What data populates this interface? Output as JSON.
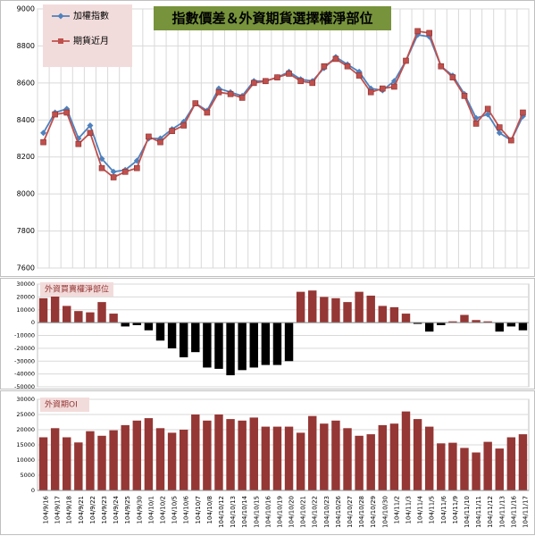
{
  "chart_data": [
    {
      "type": "line",
      "title": "指數價差＆外資期貨選擇權淨部位",
      "legend": "top-left",
      "grid": true,
      "ylim": [
        7600,
        9000
      ],
      "yticks": [
        7600,
        7800,
        8000,
        8200,
        8400,
        8600,
        8800,
        9000
      ],
      "series": [
        {
          "name": "加權指數",
          "color": "#4f81bd",
          "marker": "diamond",
          "values": [
            8330,
            8440,
            8460,
            8300,
            8370,
            8190,
            8120,
            8130,
            8180,
            8300,
            8300,
            8350,
            8390,
            8490,
            8450,
            8570,
            8550,
            8530,
            8610,
            8610,
            8630,
            8660,
            8620,
            8610,
            8680,
            8740,
            8700,
            8660,
            8570,
            8560,
            8610,
            8720,
            8860,
            8850,
            8690,
            8640,
            8540,
            8410,
            8430,
            8330,
            8290,
            8420
          ]
        },
        {
          "name": "期貨近月",
          "color": "#c0504d",
          "marker": "square",
          "values": [
            8280,
            8430,
            8440,
            8270,
            8330,
            8140,
            8090,
            8120,
            8140,
            8310,
            8280,
            8340,
            8370,
            8490,
            8440,
            8550,
            8540,
            8520,
            8600,
            8610,
            8630,
            8650,
            8610,
            8600,
            8690,
            8730,
            8690,
            8640,
            8550,
            8570,
            8580,
            8720,
            8880,
            8870,
            8690,
            8630,
            8530,
            8380,
            8460,
            8360,
            8290,
            8440
          ]
        }
      ]
    },
    {
      "type": "bar",
      "title": "外資買賣權淨部位",
      "grid": true,
      "color": "#953735",
      "negative_color": "#000000",
      "ylim": [
        -50000,
        30000
      ],
      "yticks": [
        -50000,
        -40000,
        -30000,
        -20000,
        -10000,
        0,
        10000,
        20000,
        30000
      ],
      "values": [
        19000,
        21000,
        13000,
        9000,
        8000,
        16000,
        7000,
        -3000,
        -2000,
        -6000,
        -14000,
        -20000,
        -27000,
        -23000,
        -35000,
        -36000,
        -41000,
        -37000,
        -35000,
        -33000,
        -33000,
        -30000,
        24000,
        25000,
        20000,
        19000,
        16000,
        24000,
        21000,
        13000,
        12000,
        7000,
        -1000,
        -7000,
        -2000,
        1000,
        6000,
        2000,
        1000,
        -7000,
        -3000,
        -6000
      ]
    },
    {
      "type": "bar",
      "title": "外資期OI",
      "grid": true,
      "color": "#953735",
      "ylim": [
        0,
        30000
      ],
      "yticks": [
        0,
        5000,
        10000,
        15000,
        20000,
        25000,
        30000
      ],
      "categories": [
        "104/9/16",
        "104/9/17",
        "104/9/18",
        "104/9/21",
        "104/9/22",
        "104/9/23",
        "104/9/24",
        "104/9/25",
        "104/9/30",
        "104/10/1",
        "104/10/2",
        "104/10/5",
        "104/10/6",
        "104/10/7",
        "104/10/8",
        "104/10/12",
        "104/10/13",
        "104/10/14",
        "104/10/15",
        "104/10/16",
        "104/10/19",
        "104/10/20",
        "104/10/21",
        "104/10/22",
        "104/10/23",
        "104/10/26",
        "104/10/27",
        "104/10/28",
        "104/10/29",
        "104/10/30",
        "104/11/2",
        "104/11/3",
        "104/11/4",
        "104/11/5",
        "104/11/6",
        "104/11/9",
        "104/11/10",
        "104/11/11",
        "104/11/12",
        "104/11/13",
        "104/11/16",
        "104/11/17"
      ],
      "values": [
        17500,
        20500,
        17500,
        15800,
        19500,
        18000,
        19800,
        21500,
        23000,
        23800,
        20500,
        19000,
        20000,
        25000,
        23000,
        25000,
        23500,
        23000,
        24000,
        21000,
        21000,
        21000,
        19000,
        24500,
        22000,
        23000,
        20500,
        18000,
        18500,
        21500,
        22000,
        26000,
        23500,
        21000,
        15500,
        15700,
        14000,
        12500,
        16000,
        13800,
        17500,
        18500
      ]
    }
  ]
}
